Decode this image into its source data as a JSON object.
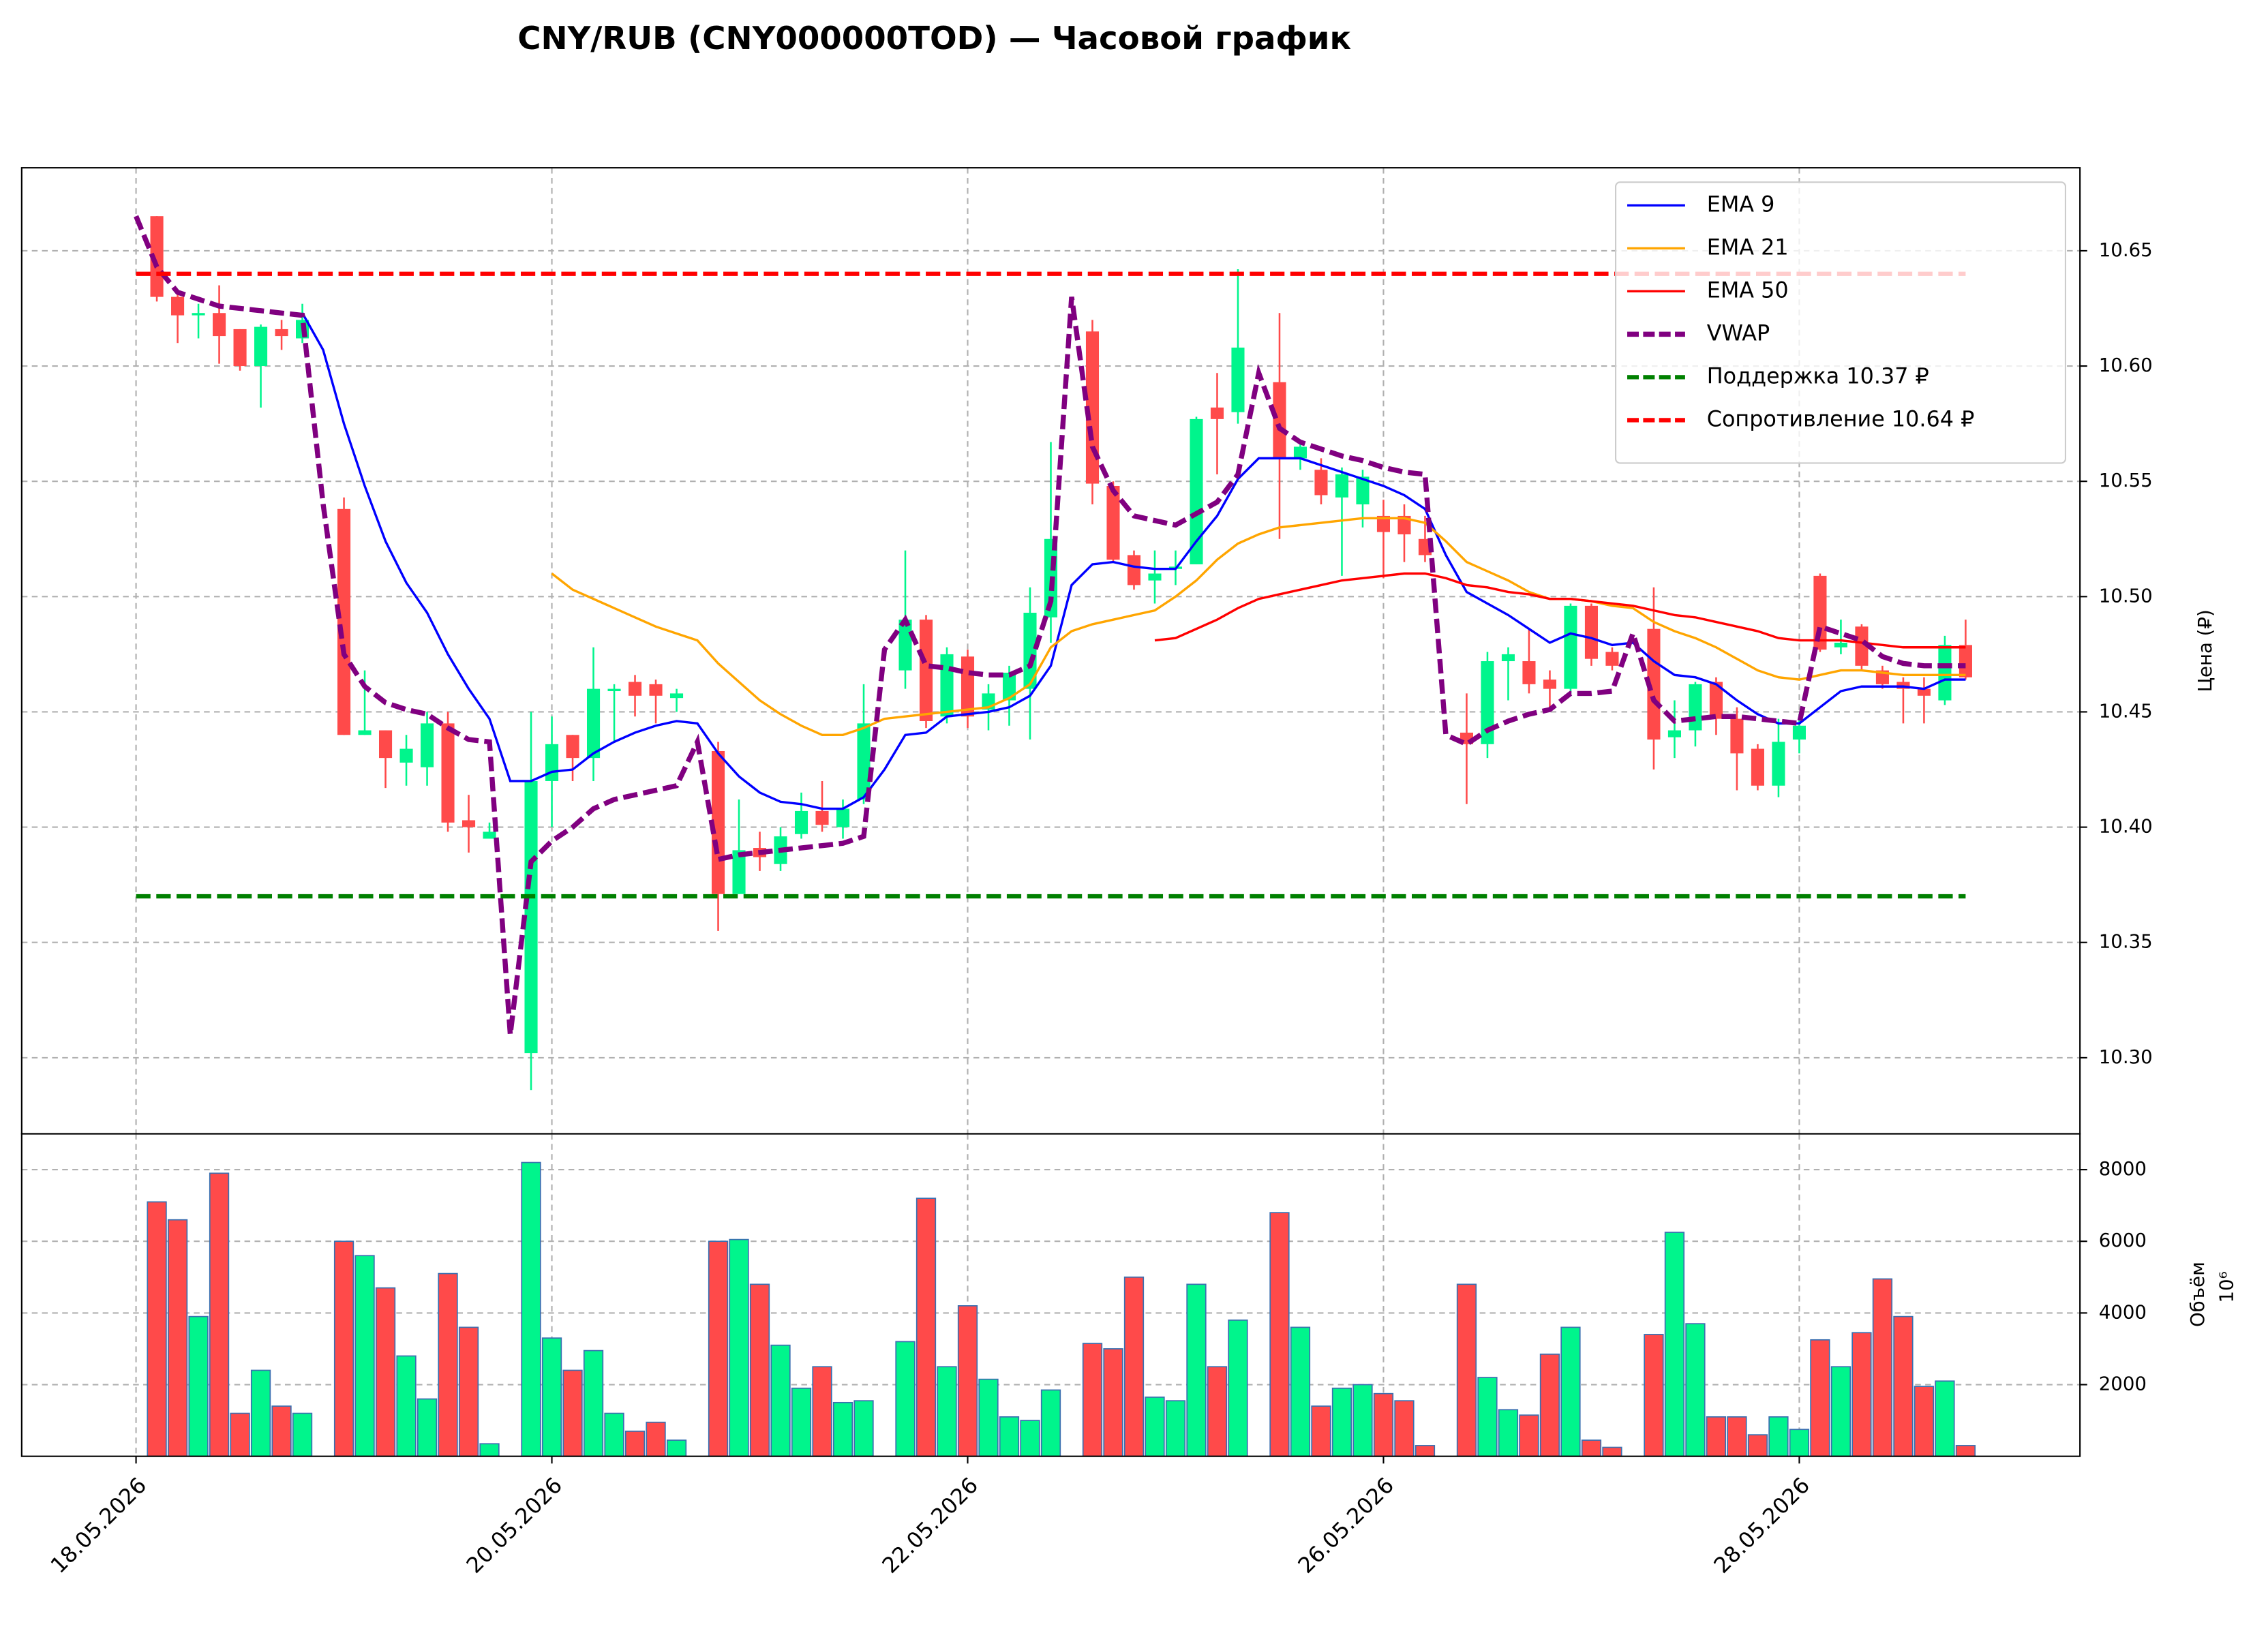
{
  "chart_data": [
    {
      "type": "candlestick",
      "title": "CNY/RUB (CNY000000TOD) — Часовой график",
      "ylabel": "Цена (₽)",
      "x": [
        0,
        1,
        2,
        3,
        4,
        5,
        6,
        7,
        8,
        9,
        10,
        11,
        12,
        13,
        14,
        15,
        16,
        17,
        18,
        19,
        20,
        21,
        22,
        23,
        24,
        25,
        26,
        27,
        28,
        29,
        30,
        31,
        32,
        33,
        34,
        35,
        36,
        37,
        38,
        39,
        40,
        41,
        42,
        43,
        44,
        45,
        46,
        47,
        48,
        49,
        50,
        51,
        52,
        53,
        54,
        55,
        56,
        57,
        58,
        59,
        60,
        61,
        62,
        63,
        64,
        65,
        66,
        67,
        68,
        69,
        70,
        71,
        72,
        73,
        74,
        75,
        76,
        77,
        78,
        79,
        80,
        81,
        82,
        83,
        84,
        85,
        86,
        87,
        88
      ],
      "open": [
        null,
        10.665,
        10.63,
        10.622,
        10.623,
        10.616,
        10.6,
        10.616,
        10.612,
        null,
        10.538,
        10.44,
        10.442,
        10.428,
        10.426,
        10.445,
        10.403,
        10.395,
        null,
        10.302,
        10.42,
        10.44,
        10.43,
        10.459,
        10.463,
        10.462,
        10.456,
        null,
        10.433,
        10.371,
        10.391,
        10.384,
        10.397,
        10.407,
        10.4,
        10.412,
        null,
        10.468,
        10.49,
        10.448,
        10.474,
        10.451,
        10.455,
        10.46,
        10.491,
        null,
        10.615,
        10.548,
        10.518,
        10.507,
        10.512,
        10.514,
        10.582,
        10.58,
        null,
        10.593,
        10.56,
        10.555,
        10.543,
        10.54,
        10.535,
        10.535,
        10.525,
        null,
        10.441,
        10.436,
        10.472,
        10.472,
        10.464,
        10.46,
        10.496,
        10.476,
        null,
        10.486,
        10.439,
        10.442,
        10.463,
        10.447,
        10.434,
        10.418,
        10.438,
        10.509,
        10.478,
        10.487,
        10.468,
        10.463,
        10.46,
        10.455,
        10.479
      ],
      "high": [
        null,
        10.665,
        10.632,
        10.627,
        10.635,
        10.616,
        10.618,
        10.62,
        10.627,
        null,
        10.543,
        10.468,
        10.442,
        10.44,
        10.45,
        10.45,
        10.414,
        10.402,
        null,
        10.45,
        10.448,
        10.44,
        10.478,
        10.462,
        10.466,
        10.464,
        10.46,
        null,
        10.437,
        10.412,
        10.398,
        10.4,
        10.415,
        10.42,
        10.412,
        10.462,
        null,
        10.52,
        10.492,
        10.478,
        10.477,
        10.462,
        10.47,
        10.504,
        10.567,
        null,
        10.62,
        10.55,
        10.52,
        10.52,
        10.52,
        10.578,
        10.597,
        10.642,
        null,
        10.623,
        10.568,
        10.56,
        10.556,
        10.555,
        10.542,
        10.54,
        10.535,
        null,
        10.458,
        10.476,
        10.478,
        10.486,
        10.468,
        10.497,
        10.497,
        10.478,
        null,
        10.504,
        10.455,
        10.463,
        10.465,
        10.452,
        10.436,
        10.447,
        10.449,
        10.51,
        10.49,
        10.488,
        10.47,
        10.465,
        10.465,
        10.483,
        10.49
      ],
      "low": [
        null,
        10.628,
        10.61,
        10.612,
        10.601,
        10.598,
        10.582,
        10.607,
        10.61,
        null,
        10.44,
        10.44,
        10.417,
        10.418,
        10.418,
        10.398,
        10.389,
        10.395,
        null,
        10.286,
        10.4,
        10.42,
        10.42,
        10.437,
        10.448,
        10.445,
        10.45,
        null,
        10.355,
        10.371,
        10.381,
        10.381,
        10.395,
        10.398,
        10.395,
        10.41,
        null,
        10.46,
        10.443,
        10.445,
        10.443,
        10.442,
        10.444,
        10.438,
        10.48,
        null,
        10.54,
        10.515,
        10.503,
        10.497,
        10.505,
        10.514,
        10.553,
        10.575,
        null,
        10.525,
        10.555,
        10.54,
        10.509,
        10.53,
        10.508,
        10.515,
        10.515,
        null,
        10.41,
        10.43,
        10.455,
        10.458,
        10.452,
        10.458,
        10.47,
        10.468,
        null,
        10.425,
        10.43,
        10.435,
        10.44,
        10.416,
        10.416,
        10.413,
        10.432,
        10.476,
        10.475,
        10.468,
        10.46,
        10.445,
        10.445,
        10.453,
        10.464
      ],
      "close": [
        null,
        10.63,
        10.622,
        10.623,
        10.613,
        10.6,
        10.617,
        10.613,
        10.62,
        null,
        10.44,
        10.442,
        10.43,
        10.434,
        10.445,
        10.402,
        10.4,
        10.398,
        null,
        10.42,
        10.436,
        10.43,
        10.46,
        10.46,
        10.457,
        10.457,
        10.458,
        null,
        10.371,
        10.39,
        10.387,
        10.396,
        10.407,
        10.401,
        10.408,
        10.445,
        null,
        10.49,
        10.446,
        10.475,
        10.448,
        10.458,
        10.467,
        10.493,
        10.525,
        null,
        10.549,
        10.516,
        10.505,
        10.51,
        10.513,
        10.577,
        10.577,
        10.608,
        null,
        10.56,
        10.565,
        10.544,
        10.553,
        10.552,
        10.528,
        10.527,
        10.518,
        null,
        10.436,
        10.472,
        10.475,
        10.462,
        10.46,
        10.496,
        10.473,
        10.47,
        null,
        10.438,
        10.442,
        10.462,
        10.447,
        10.432,
        10.418,
        10.437,
        10.444,
        10.477,
        10.48,
        10.47,
        10.462,
        10.46,
        10.457,
        10.479,
        10.465
      ],
      "up_color": "#00f58c",
      "down_color": "#ff4a4a",
      "series": [
        {
          "name": "EMA 9",
          "color": "#0000ff",
          "dashed": false,
          "values": [
            null,
            null,
            null,
            null,
            null,
            null,
            null,
            null,
            10.623,
            10.607,
            10.575,
            10.548,
            10.524,
            10.506,
            10.493,
            10.475,
            10.46,
            10.447,
            10.42,
            10.42,
            10.424,
            10.425,
            10.432,
            10.437,
            10.441,
            10.444,
            10.446,
            10.445,
            10.432,
            10.422,
            10.415,
            10.411,
            10.41,
            10.408,
            10.408,
            10.413,
            10.425,
            10.44,
            10.441,
            10.448,
            10.449,
            10.45,
            10.452,
            10.457,
            10.47,
            10.505,
            10.514,
            10.515,
            10.513,
            10.512,
            10.512,
            10.524,
            10.535,
            10.551,
            10.56,
            10.56,
            10.56,
            10.557,
            10.554,
            10.551,
            10.548,
            10.544,
            10.538,
            10.518,
            10.502,
            10.497,
            10.492,
            10.486,
            10.48,
            10.484,
            10.482,
            10.479,
            10.48,
            10.472,
            10.466,
            10.465,
            10.462,
            10.455,
            10.449,
            10.445,
            10.445,
            10.452,
            10.459,
            10.461,
            10.461,
            10.461,
            10.46,
            10.464,
            10.464
          ]
        },
        {
          "name": "EMA 21",
          "color": "#ffa500",
          "dashed": false,
          "values": [
            null,
            null,
            null,
            null,
            null,
            null,
            null,
            null,
            null,
            null,
            null,
            null,
            null,
            null,
            null,
            null,
            null,
            null,
            null,
            null,
            10.51,
            10.503,
            10.499,
            10.495,
            10.491,
            10.487,
            10.484,
            10.481,
            10.471,
            10.463,
            10.455,
            10.449,
            10.444,
            10.44,
            10.44,
            10.443,
            10.447,
            10.448,
            10.449,
            10.45,
            10.451,
            10.452,
            10.456,
            10.462,
            10.478,
            10.485,
            10.488,
            10.49,
            10.492,
            10.494,
            10.5,
            10.507,
            10.516,
            10.523,
            10.527,
            10.53,
            10.531,
            10.532,
            10.533,
            10.534,
            10.534,
            10.534,
            10.532,
            10.524,
            10.515,
            10.511,
            10.507,
            10.502,
            10.499,
            10.499,
            10.498,
            10.496,
            10.495,
            10.489,
            10.485,
            10.482,
            10.478,
            10.473,
            10.468,
            10.465,
            10.464,
            10.466,
            10.468,
            10.468,
            10.467,
            10.466,
            10.466,
            10.466,
            10.466
          ]
        },
        {
          "name": "EMA 50",
          "color": "#ff0000",
          "dashed": false,
          "values": [
            null,
            null,
            null,
            null,
            null,
            null,
            null,
            null,
            null,
            null,
            null,
            null,
            null,
            null,
            null,
            null,
            null,
            null,
            null,
            null,
            null,
            null,
            null,
            null,
            null,
            null,
            null,
            null,
            null,
            null,
            null,
            null,
            null,
            null,
            null,
            null,
            null,
            null,
            null,
            null,
            null,
            null,
            null,
            null,
            null,
            null,
            null,
            null,
            null,
            10.481,
            10.482,
            10.486,
            10.49,
            10.495,
            10.499,
            10.501,
            10.503,
            10.505,
            10.507,
            10.508,
            10.509,
            10.51,
            10.51,
            10.508,
            10.505,
            10.504,
            10.502,
            10.501,
            10.499,
            10.499,
            10.498,
            10.497,
            10.496,
            10.494,
            10.492,
            10.491,
            10.489,
            10.487,
            10.485,
            10.482,
            10.481,
            10.481,
            10.481,
            10.48,
            10.479,
            10.478,
            10.478,
            10.478,
            10.478
          ]
        },
        {
          "name": "VWAP",
          "color": "#800080",
          "dashed": true,
          "values": [
            10.665,
            10.643,
            10.632,
            10.629,
            10.626,
            10.625,
            10.624,
            10.623,
            10.622,
            10.54,
            10.475,
            10.461,
            10.454,
            10.451,
            10.449,
            10.443,
            10.438,
            10.437,
            10.31,
            10.385,
            10.394,
            10.4,
            10.408,
            10.412,
            10.414,
            10.416,
            10.418,
            10.437,
            10.386,
            10.388,
            10.389,
            10.39,
            10.391,
            10.392,
            10.393,
            10.396,
            10.477,
            10.49,
            10.47,
            10.469,
            10.467,
            10.466,
            10.466,
            10.47,
            10.498,
            10.63,
            10.565,
            10.546,
            10.535,
            10.533,
            10.531,
            10.536,
            10.541,
            10.553,
            10.597,
            10.573,
            10.567,
            10.564,
            10.561,
            10.559,
            10.556,
            10.554,
            10.553,
            10.44,
            10.436,
            10.442,
            10.446,
            10.449,
            10.451,
            10.458,
            10.458,
            10.459,
            10.484,
            10.455,
            10.446,
            10.447,
            10.448,
            10.448,
            10.447,
            10.446,
            10.445,
            10.487,
            10.484,
            10.481,
            10.474,
            10.471,
            10.47,
            10.47,
            10.47
          ]
        }
      ],
      "levels": [
        {
          "name": "Поддержка 10.37 ₽",
          "value": 10.37,
          "color": "#008000"
        },
        {
          "name": "Сопротивление 10.64 ₽",
          "value": 10.64,
          "color": "#ff0000"
        }
      ],
      "xlim": [
        -5.5,
        93.5
      ],
      "ylim": [
        10.267,
        10.686
      ],
      "yticks": [
        {
          "value": 10.3,
          "label": "10.30"
        },
        10.35,
        {
          "value": 10.4,
          "label": "10.40"
        },
        10.45,
        {
          "value": 10.5,
          "label": "10.50"
        },
        10.55,
        {
          "value": 10.6,
          "label": "10.60"
        },
        10.65
      ],
      "grid": true,
      "legend": "upper right"
    },
    {
      "type": "bar",
      "ylabel": "Объём",
      "offset_label": "10⁶",
      "x": [
        0,
        1,
        2,
        3,
        4,
        5,
        6,
        7,
        8,
        9,
        10,
        11,
        12,
        13,
        14,
        15,
        16,
        17,
        18,
        19,
        20,
        21,
        22,
        23,
        24,
        25,
        26,
        27,
        28,
        29,
        30,
        31,
        32,
        33,
        34,
        35,
        36,
        37,
        38,
        39,
        40,
        41,
        42,
        43,
        44,
        45,
        46,
        47,
        48,
        49,
        50,
        51,
        52,
        53,
        54,
        55,
        56,
        57,
        58,
        59,
        60,
        61,
        62,
        63,
        64,
        65,
        66,
        67,
        68,
        69,
        70,
        71,
        72,
        73,
        74,
        75,
        76,
        77,
        78,
        79,
        80,
        81,
        82,
        83,
        84,
        85,
        86,
        87,
        88
      ],
      "values": [
        null,
        7100,
        6600,
        3900,
        7900,
        1200,
        2400,
        1400,
        1200,
        null,
        6000,
        5600,
        4700,
        2800,
        1600,
        5100,
        3600,
        350,
        null,
        8200,
        3300,
        2400,
        2950,
        1200,
        700,
        950,
        450,
        null,
        6000,
        6050,
        4800,
        3100,
        1900,
        2500,
        1500,
        1550,
        null,
        3200,
        7200,
        2500,
        4200,
        2150,
        1100,
        1000,
        1850,
        null,
        3150,
        3000,
        5000,
        1650,
        1550,
        4800,
        2500,
        3800,
        null,
        6800,
        3600,
        1400,
        1900,
        2000,
        1750,
        1550,
        300,
        null,
        4800,
        2200,
        1300,
        1150,
        2850,
        3600,
        450,
        250,
        null,
        3400,
        6250,
        3700,
        1100,
        1100,
        600,
        1100,
        750,
        3250,
        2500,
        3450,
        4950,
        3900,
        1950,
        2100,
        300
      ],
      "edge_color": "#3a6fb0",
      "xlim": [
        -5.5,
        93.5
      ],
      "xticks": [
        {
          "value": 0,
          "label": "18.05.2026"
        },
        {
          "value": 20,
          "label": "20.05.2026"
        },
        {
          "value": 40,
          "label": "22.05.2026"
        },
        {
          "value": 60,
          "label": "26.05.2026"
        },
        {
          "value": 80,
          "label": "28.05.2026"
        }
      ],
      "ylim": [
        0,
        9000
      ],
      "yticks": [
        2000,
        4000,
        6000,
        8000
      ],
      "grid": true
    }
  ]
}
